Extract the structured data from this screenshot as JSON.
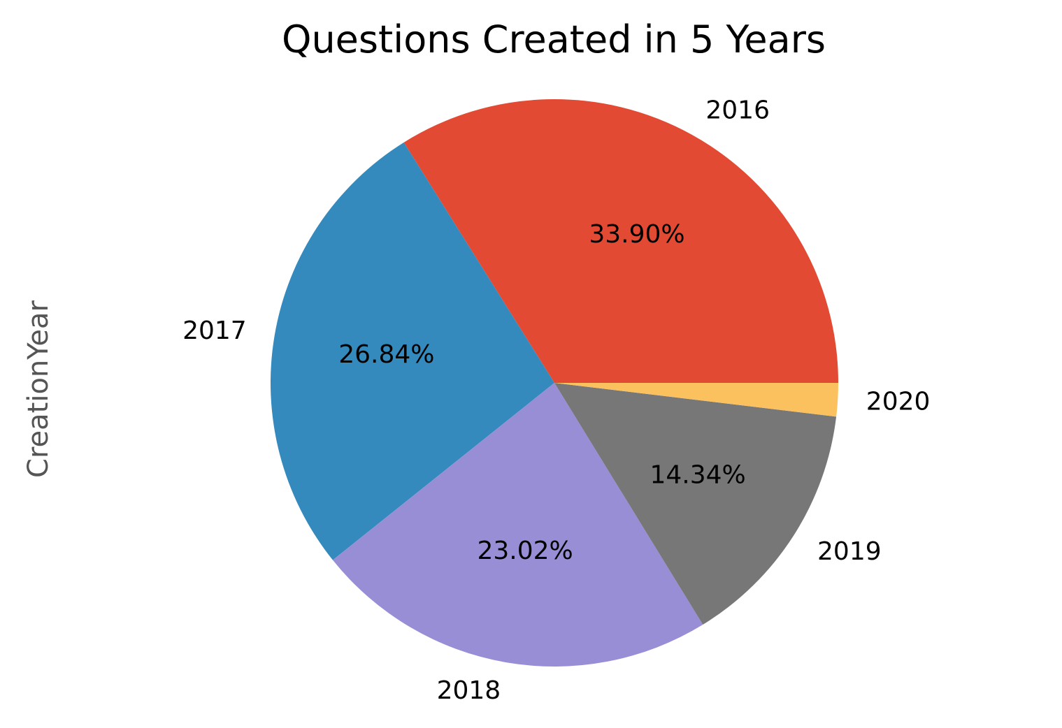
{
  "chart_data": {
    "type": "pie",
    "title": "Questions Created in 5 Years",
    "ylabel": "CreationYear",
    "categories": [
      "2016",
      "2017",
      "2018",
      "2019",
      "2020"
    ],
    "values": [
      33.9,
      26.84,
      23.02,
      14.34,
      1.9
    ],
    "value_labels": [
      "33.90%",
      "26.84%",
      "23.02%",
      "14.34%",
      ""
    ],
    "colors": [
      "#E24A33",
      "#348ABD",
      "#988ED5",
      "#777777",
      "#FBC15E"
    ],
    "start_angle_deg": 0,
    "direction": "counterclockwise",
    "legend": "none"
  }
}
